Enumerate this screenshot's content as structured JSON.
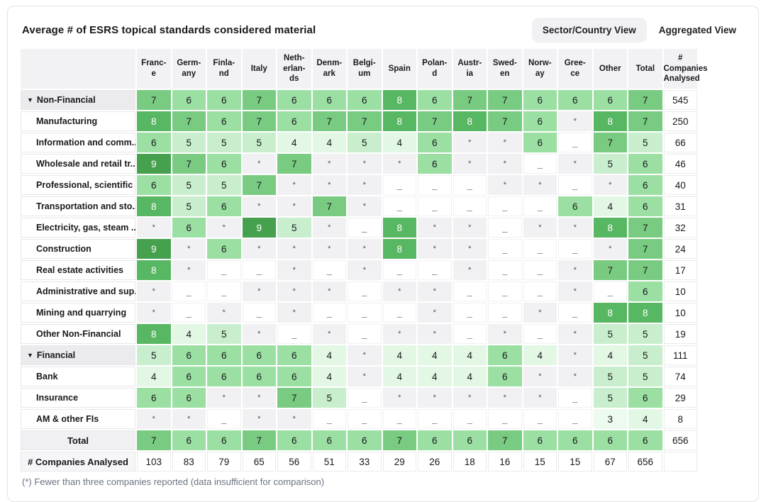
{
  "header": {
    "view_buttons": [
      {
        "label": "Sector/Country View",
        "active": true
      },
      {
        "label": "Aggregated View",
        "active": false
      }
    ]
  },
  "chart_data": {
    "type": "heatmap",
    "title": "Average # of ESRS topical standards considered material",
    "value_range": [
      3,
      9
    ],
    "legend": {
      "asterisk_meaning": "Fewer than three companies reported (data insufficient for comparison)"
    },
    "columns": [
      {
        "name": "France",
        "display": "Franc-\ne"
      },
      {
        "name": "Germany",
        "display": "Germ-\nany"
      },
      {
        "name": "Finland",
        "display": "Finla-\nnd"
      },
      {
        "name": "Italy",
        "display": "Italy"
      },
      {
        "name": "Netherlands",
        "display": "Neth-\nerlan-\nds"
      },
      {
        "name": "Denmark",
        "display": "Denm-\nark"
      },
      {
        "name": "Belgium",
        "display": "Belgi-\num"
      },
      {
        "name": "Spain",
        "display": "Spain"
      },
      {
        "name": "Poland",
        "display": "Polan-\nd"
      },
      {
        "name": "Austria",
        "display": "Austr-\nia"
      },
      {
        "name": "Sweden",
        "display": "Swed-\nen"
      },
      {
        "name": "Norway",
        "display": "Norw-\nay"
      },
      {
        "name": "Greece",
        "display": "Gree-\nce"
      },
      {
        "name": "Other",
        "display": "Other"
      },
      {
        "name": "Total",
        "display": "Total"
      },
      {
        "name": "# Companies Analysed",
        "display": "#\nCompanies\nAnalysed"
      }
    ],
    "rows": [
      {
        "label": "Non-Financial",
        "type": "section",
        "collapse_icon": "▼",
        "cells": [
          "7",
          "6",
          "6",
          "7",
          "6",
          "6",
          "6",
          "8",
          "6",
          "7",
          "7",
          "6",
          "6",
          "6",
          "7"
        ],
        "companies": "545"
      },
      {
        "label": "Manufacturing",
        "type": "sector",
        "cells": [
          "8",
          "7",
          "6",
          "7",
          "6",
          "7",
          "7",
          "8",
          "7",
          "8",
          "7",
          "6",
          "*",
          "8",
          "7"
        ],
        "companies": "250"
      },
      {
        "label": "Information and comm...",
        "type": "sector",
        "cells": [
          "6",
          "5",
          "5",
          "5",
          "4",
          "4",
          "5",
          "4",
          "6",
          "*",
          "*",
          "6",
          "_",
          "7",
          "5"
        ],
        "companies": "66"
      },
      {
        "label": "Wholesale and retail tr...",
        "type": "sector",
        "cells": [
          "9",
          "7",
          "6",
          "*",
          "7",
          "*",
          "*",
          "*",
          "6",
          "*",
          "*",
          "_",
          "*",
          "5",
          "6"
        ],
        "companies": "46"
      },
      {
        "label": "Professional, scientific ...",
        "type": "sector",
        "cells": [
          "6",
          "5",
          "5",
          "7",
          "*",
          "*",
          "*",
          "_",
          "_",
          "_",
          "*",
          "*",
          "_",
          "*",
          "6"
        ],
        "companies": "40"
      },
      {
        "label": "Transportation and sto...",
        "type": "sector",
        "cells": [
          "8",
          "5",
          "6",
          "*",
          "*",
          "7",
          "*",
          "_",
          "_",
          "_",
          "_",
          "_",
          "6",
          "4",
          "6"
        ],
        "companies": "31"
      },
      {
        "label": "Electricity, gas, steam ...",
        "type": "sector",
        "cells": [
          "*",
          "6",
          "*",
          "9",
          "5",
          "*",
          "_",
          "8",
          "*",
          "*",
          "_",
          "*",
          "*",
          "8",
          "7"
        ],
        "companies": "32"
      },
      {
        "label": "Construction",
        "type": "sector",
        "cells": [
          "9",
          "*",
          "6",
          "*",
          "*",
          "*",
          "*",
          "8",
          "*",
          "*",
          "_",
          "_",
          "_",
          "*",
          "7"
        ],
        "companies": "24"
      },
      {
        "label": "Real estate activities",
        "type": "sector",
        "cells": [
          "8",
          "*",
          "_",
          "_",
          "*",
          "_",
          "*",
          "_",
          "_",
          "*",
          "_",
          "_",
          "*",
          "7",
          "7"
        ],
        "companies": "17"
      },
      {
        "label": "Administrative and sup...",
        "type": "sector",
        "cells": [
          "*",
          "_",
          "_",
          "*",
          "*",
          "*",
          "_",
          "*",
          "*",
          "_",
          "_",
          "_",
          "*",
          "_",
          "6"
        ],
        "companies": "10"
      },
      {
        "label": "Mining and quarrying",
        "type": "sector",
        "cells": [
          "*",
          "_",
          "*",
          "_",
          "*",
          "_",
          "_",
          "_",
          "*",
          "_",
          "_",
          "*",
          "_",
          "8",
          "8"
        ],
        "companies": "10"
      },
      {
        "label": "Other Non-Financial",
        "type": "sector",
        "cells": [
          "8",
          "4",
          "5",
          "*",
          "_",
          "*",
          "_",
          "*",
          "*",
          "_",
          "*",
          "_",
          "*",
          "5",
          "5"
        ],
        "companies": "19"
      },
      {
        "label": "Financial",
        "type": "section",
        "collapse_icon": "▼",
        "cells": [
          "5",
          "6",
          "6",
          "6",
          "6",
          "4",
          "*",
          "4",
          "4",
          "4",
          "6",
          "4",
          "*",
          "4",
          "5"
        ],
        "companies": "111"
      },
      {
        "label": "Bank",
        "type": "sector",
        "cells": [
          "4",
          "6",
          "6",
          "6",
          "6",
          "4",
          "*",
          "4",
          "4",
          "4",
          "6",
          "*",
          "*",
          "5",
          "5"
        ],
        "companies": "74"
      },
      {
        "label": "Insurance",
        "type": "sector",
        "cells": [
          "6",
          "6",
          "*",
          "*",
          "7",
          "5",
          "_",
          "*",
          "*",
          "*",
          "*",
          "*",
          "_",
          "5",
          "6"
        ],
        "companies": "29"
      },
      {
        "label": "AM & other FIs",
        "type": "sector",
        "cells": [
          "*",
          "*",
          "_",
          "*",
          "*",
          "_",
          "_",
          "_",
          "_",
          "_",
          "_",
          "_",
          "_",
          "3",
          "4"
        ],
        "companies": "8"
      },
      {
        "label": "Total",
        "type": "total",
        "cells": [
          "7",
          "6",
          "6",
          "7",
          "6",
          "6",
          "6",
          "7",
          "6",
          "6",
          "7",
          "6",
          "6",
          "6",
          "6"
        ],
        "companies": "656"
      },
      {
        "label": "# Companies Analysed",
        "type": "companies",
        "cells": [
          "103",
          "83",
          "79",
          "65",
          "56",
          "51",
          "33",
          "29",
          "26",
          "18",
          "16",
          "15",
          "15",
          "67",
          "656"
        ],
        "companies": ""
      }
    ]
  },
  "colors": {
    "9": "#46a14f",
    "8": "#58b762",
    "7": "#7acb82",
    "6": "#9cdfa3",
    "5": "#c9eecd",
    "4": "#e3f7e5",
    "3": "#edfaf0",
    "star_bg": "#f1f1f4",
    "dash_bg": "#ffffff",
    "white_text_values": [
      "8",
      "9"
    ]
  },
  "footnote": "(*)  Fewer than three companies reported (data insufficient for comparison)"
}
